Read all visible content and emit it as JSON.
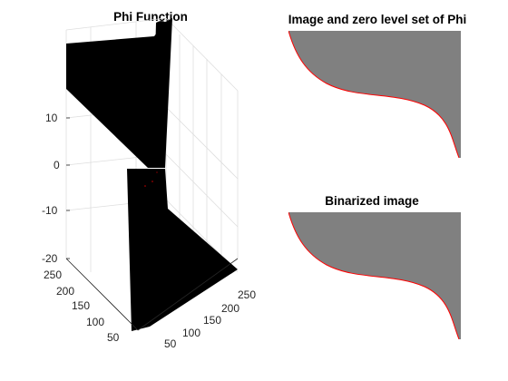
{
  "figure": {
    "panels": {
      "phi": {
        "title": "Phi Function",
        "z_ticks": [
          "10",
          "0",
          "-10",
          "-20"
        ],
        "y_ticks": [
          "250",
          "200",
          "150",
          "100",
          "50"
        ],
        "x_ticks": [
          "250",
          "200",
          "150",
          "100",
          "50"
        ]
      },
      "image_zero": {
        "title": "Image and zero level set of Phi"
      },
      "binarized": {
        "title": "Binarized image"
      }
    },
    "colors": {
      "surface": "#000000",
      "gray_region": "#808080",
      "contour": "#ff0000",
      "grid": "#dedede"
    }
  }
}
